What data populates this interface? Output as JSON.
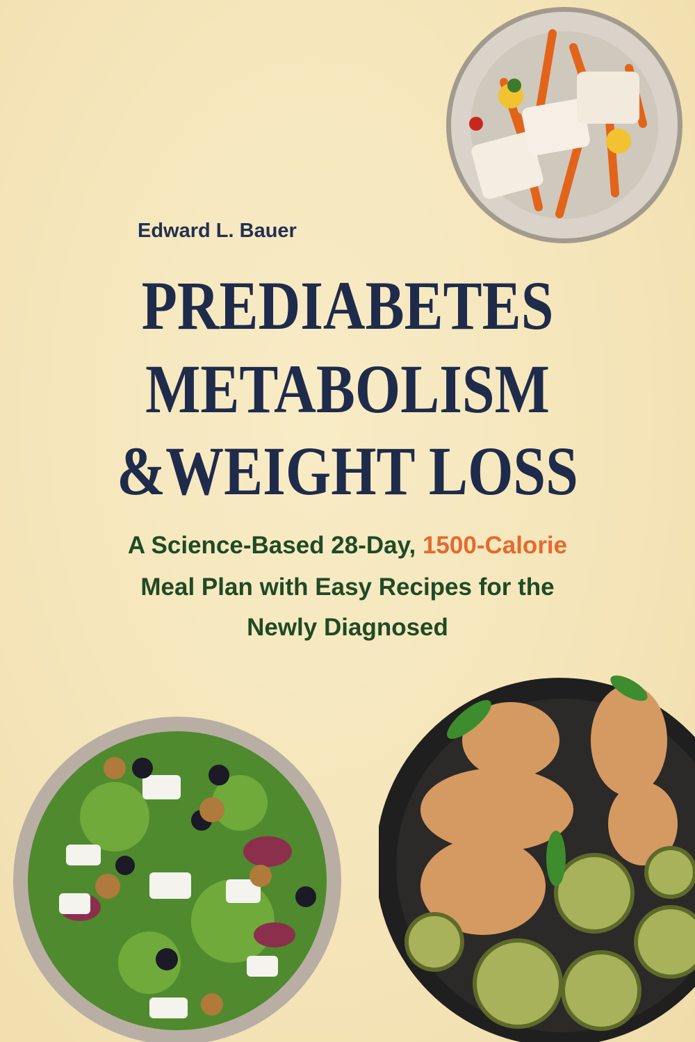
{
  "cover": {
    "author": "Edward L. Bauer",
    "title_lines": [
      "PREDIABETES",
      "METABOLISM",
      "&WEIGHT LOSS"
    ],
    "subtitle": {
      "line1_part1": "A Science-Based 28-Day, ",
      "line1_highlight": "1500-Calorie",
      "line2": "Meal Plan with Easy Recipes for the",
      "line3": "Newly Diagnosed"
    },
    "colors": {
      "background": "#f5e6bb",
      "title": "#1f2b4a",
      "subtitle": "#1f4a24",
      "highlight": "#e26b2e"
    },
    "images": [
      "fish-with-sweet-potato-fries-plate",
      "green-salad-bowl",
      "chicken-zucchini-skillet"
    ]
  }
}
